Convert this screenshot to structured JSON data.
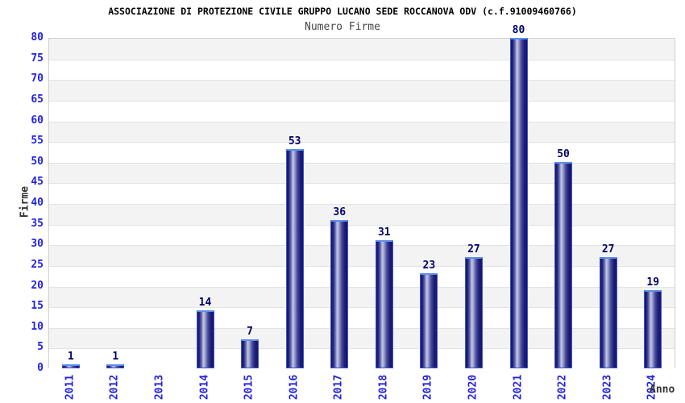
{
  "chart_data": {
    "type": "bar",
    "title": "ASSOCIAZIONE DI PROTEZIONE CIVILE GRUPPO LUCANO SEDE ROCCANOVA ODV (c.f.91009460766)",
    "subtitle": "Numero Firme",
    "xlabel": "Anno",
    "ylabel": "Firme",
    "categories": [
      "2011",
      "2012",
      "2013",
      "2014",
      "2015",
      "2016",
      "2017",
      "2018",
      "2019",
      "2020",
      "2021",
      "2022",
      "2023",
      "2024"
    ],
    "values": [
      1,
      1,
      0,
      14,
      7,
      53,
      36,
      31,
      23,
      27,
      80,
      50,
      27,
      19
    ],
    "ylim": [
      0,
      80
    ],
    "ytick_step": 5,
    "grid": "horizontal-bands-alternating",
    "legend_position": "none",
    "bar_value_labels_visible": true,
    "colors": {
      "bar_dark": "#16166b",
      "bar_highlight": "#c4c8e6",
      "bar_border": "#3a55cc",
      "bar_top_border": "#5b8dee",
      "axis_tick_text": "#2222dd",
      "value_label_text": "#000066",
      "band_shaded": "#f3f3f3",
      "band_plain": "#ffffff",
      "plot_border": "#d0d0d0",
      "grid_line": "#e3e3e3",
      "title_text": "#000000",
      "subtitle_text": "#444444",
      "axis_title_text": "#333333"
    }
  }
}
